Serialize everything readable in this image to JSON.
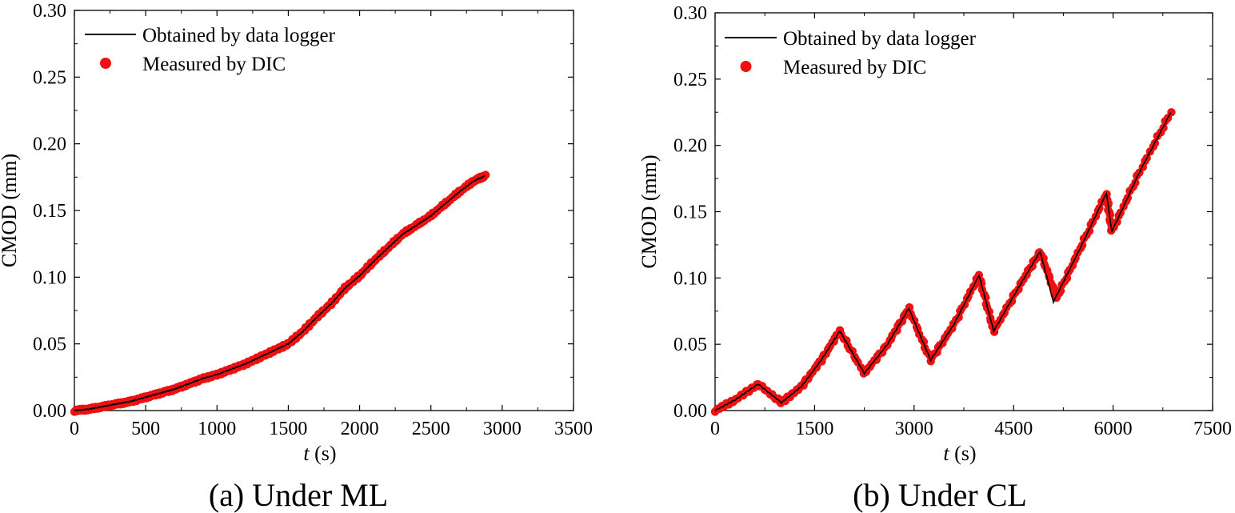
{
  "figure": {
    "caption_a": "(a) Under ML",
    "caption_b": "(b) Under CL",
    "colors": {
      "line": "#000000",
      "marker": "#ee1111",
      "axis": "#000000"
    }
  },
  "chart_data": [
    {
      "type": "line+scatter",
      "title": "(a) Under ML",
      "xlabel_italic": "t",
      "xlabel_unit": "(s)",
      "ylabel": "CMOD (mm)",
      "xlim": [
        0,
        3500
      ],
      "ylim": [
        0,
        0.3
      ],
      "xticks": [
        0,
        500,
        1000,
        1500,
        2000,
        2500,
        3000,
        3500
      ],
      "yticks": [
        0.0,
        0.05,
        0.1,
        0.15,
        0.2,
        0.25,
        0.3
      ],
      "legend_position": "top-left",
      "series": [
        {
          "name": "Obtained by data logger",
          "kind": "line",
          "x": [
            0,
            100,
            200,
            300,
            400,
            500,
            600,
            700,
            800,
            900,
            1000,
            1100,
            1200,
            1300,
            1400,
            1500,
            1600,
            1700,
            1800,
            1900,
            2000,
            2100,
            2200,
            2300,
            2400,
            2500,
            2600,
            2700,
            2800,
            2880
          ],
          "y": [
            0.0,
            0.001,
            0.003,
            0.005,
            0.007,
            0.01,
            0.013,
            0.016,
            0.02,
            0.024,
            0.027,
            0.031,
            0.035,
            0.04,
            0.045,
            0.05,
            0.059,
            0.07,
            0.08,
            0.092,
            0.101,
            0.112,
            0.122,
            0.132,
            0.139,
            0.146,
            0.155,
            0.164,
            0.172,
            0.176
          ]
        },
        {
          "name": "Measured by DIC",
          "kind": "scatter",
          "x": [
            0,
            100,
            200,
            300,
            400,
            500,
            600,
            700,
            800,
            900,
            1000,
            1100,
            1200,
            1300,
            1400,
            1500,
            1600,
            1700,
            1800,
            1900,
            2000,
            2100,
            2200,
            2300,
            2400,
            2500,
            2600,
            2700,
            2800,
            2880
          ],
          "y": [
            0.0,
            0.001,
            0.003,
            0.005,
            0.007,
            0.01,
            0.013,
            0.016,
            0.02,
            0.024,
            0.027,
            0.031,
            0.035,
            0.04,
            0.045,
            0.05,
            0.059,
            0.07,
            0.08,
            0.092,
            0.101,
            0.112,
            0.122,
            0.132,
            0.139,
            0.146,
            0.155,
            0.164,
            0.172,
            0.176
          ]
        }
      ]
    },
    {
      "type": "line+scatter",
      "title": "(b) Under CL",
      "xlabel_italic": "t",
      "xlabel_unit": "(s)",
      "ylabel": "CMOD (mm)",
      "xlim": [
        0,
        7500
      ],
      "ylim": [
        0,
        0.3
      ],
      "xticks": [
        0,
        1500,
        3000,
        4500,
        6000,
        7500
      ],
      "yticks": [
        0.0,
        0.05,
        0.1,
        0.15,
        0.2,
        0.25,
        0.3
      ],
      "legend_position": "top-left",
      "series": [
        {
          "name": "Obtained by data logger",
          "kind": "line",
          "x": [
            0,
            300,
            650,
            1000,
            1300,
            1600,
            1880,
            2250,
            2600,
            2920,
            3250,
            3600,
            3980,
            4200,
            4600,
            4900,
            5100,
            5500,
            5900,
            5980,
            6400,
            6870
          ],
          "y": [
            0.0,
            0.008,
            0.02,
            0.006,
            0.018,
            0.038,
            0.06,
            0.028,
            0.05,
            0.077,
            0.038,
            0.065,
            0.102,
            0.06,
            0.095,
            0.12,
            0.082,
            0.122,
            0.164,
            0.135,
            0.18,
            0.225
          ]
        },
        {
          "name": "Measured by DIC",
          "kind": "scatter",
          "x": [
            0,
            300,
            650,
            1000,
            1300,
            1600,
            1880,
            2250,
            2600,
            2920,
            3250,
            3600,
            3980,
            4200,
            4600,
            4900,
            5150,
            5500,
            5900,
            5980,
            6400,
            6870
          ],
          "y": [
            0.0,
            0.008,
            0.02,
            0.006,
            0.018,
            0.038,
            0.06,
            0.028,
            0.05,
            0.077,
            0.038,
            0.065,
            0.102,
            0.06,
            0.095,
            0.12,
            0.085,
            0.122,
            0.164,
            0.135,
            0.18,
            0.225
          ]
        }
      ]
    }
  ]
}
